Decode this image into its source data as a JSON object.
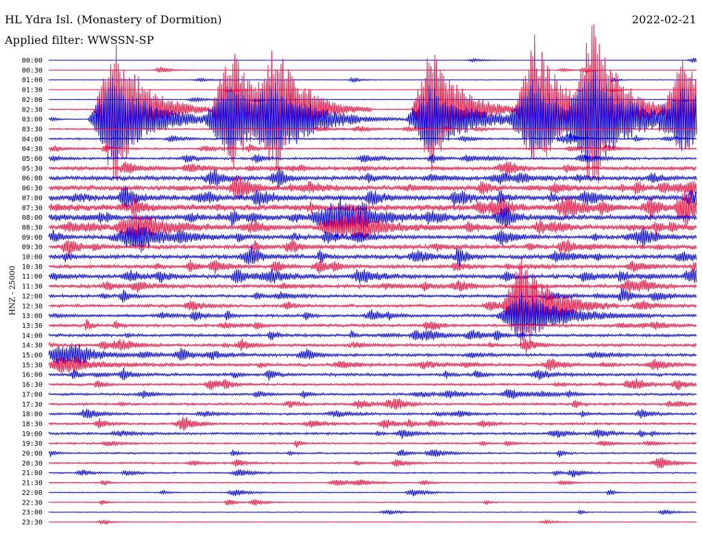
{
  "header": {
    "station": "HL Ydra Isl. (Monastery of Dormition)",
    "date": "2022-02-21",
    "filter": "Applied filter: WWSSN-SP"
  },
  "colors": {
    "trace_even": "#0000ee",
    "trace_odd": "#ff1040",
    "text": "#000000",
    "background": "#ffffff"
  },
  "chart_data": {
    "type": "line",
    "title": "HL Ydra Isl. (Monastery of Dormition)",
    "ylabel": "HNZ - 25000",
    "xlabel": "",
    "grid": false,
    "legend": "none",
    "rows": [
      "00:00",
      "00:30",
      "01:00",
      "01:30",
      "02:00",
      "02:30",
      "03:00",
      "03:30",
      "04:00",
      "04:30",
      "05:00",
      "05:30",
      "06:00",
      "06:30",
      "07:00",
      "07:30",
      "08:00",
      "08:30",
      "09:00",
      "09:30",
      "10:00",
      "10:30",
      "11:00",
      "11:30",
      "12:00",
      "12:30",
      "13:00",
      "13:30",
      "14:00",
      "14:30",
      "15:00",
      "15:30",
      "16:00",
      "16:30",
      "17:00",
      "17:30",
      "18:00",
      "18:30",
      "19:00",
      "19:30",
      "20:00",
      "20:30",
      "21:00",
      "21:30",
      "22:00",
      "22:30",
      "23:00",
      "23:30"
    ],
    "noise_level": [
      0.2,
      0.4,
      0.5,
      0.4,
      0.6,
      0.8,
      0.7,
      1.2,
      1.5,
      1.5,
      2.0,
      3.0,
      3.5,
      4.0,
      4.5,
      5.0,
      4.5,
      4.0,
      3.5,
      3.5,
      3.5,
      3.0,
      3.5,
      3.0,
      2.5,
      2.5,
      2.5,
      2.5,
      2.5,
      2.5,
      2.5,
      2.5,
      2.5,
      2.0,
      2.0,
      2.0,
      2.0,
      2.0,
      2.0,
      1.5,
      1.5,
      1.5,
      1.2,
      1.0,
      0.8,
      0.8,
      0.6,
      0.6
    ],
    "events": [
      {
        "row": 5,
        "x": 0.1,
        "amp": 120
      },
      {
        "row": 5,
        "x": 0.28,
        "amp": 100
      },
      {
        "row": 5,
        "x": 0.35,
        "amp": 80
      },
      {
        "row": 5,
        "x": 0.59,
        "amp": 95
      },
      {
        "row": 5,
        "x": 0.75,
        "amp": 110
      },
      {
        "row": 5,
        "x": 0.84,
        "amp": 120
      },
      {
        "row": 5,
        "x": 0.98,
        "amp": 80
      },
      {
        "row": 16,
        "x": 0.45,
        "amp": 30
      },
      {
        "row": 17,
        "x": 0.13,
        "amp": 25
      },
      {
        "row": 25,
        "x": 0.73,
        "amp": 65
      },
      {
        "row": 30,
        "x": 0.02,
        "amp": 15
      }
    ]
  }
}
